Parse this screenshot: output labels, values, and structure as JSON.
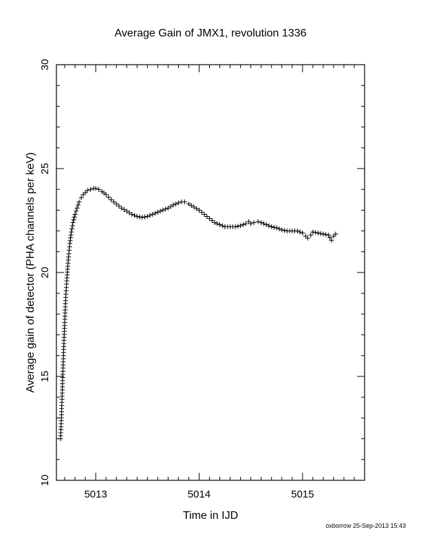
{
  "chart_data": {
    "type": "scatter",
    "title": "Average Gain of JMX1, revolution 1336",
    "xlabel": "Time in IJD",
    "ylabel": "Average gain of detector (PHA channels per keV)",
    "xlim": [
      5012.62,
      5015.6
    ],
    "ylim": [
      10,
      30
    ],
    "xticks": [
      5013,
      5014,
      5015
    ],
    "xtick_labels": [
      "5013",
      "5014",
      "5015"
    ],
    "yticks": [
      10,
      15,
      20,
      25,
      30
    ],
    "ytick_labels": [
      "10",
      "15",
      "20",
      "25",
      "30"
    ],
    "marker": "plus",
    "grid": false,
    "series": [
      {
        "x": [
          5012.66,
          5012.67,
          5012.68,
          5012.69,
          5012.7,
          5012.71,
          5012.72,
          5012.73,
          5012.74,
          5012.75,
          5012.76,
          5012.77,
          5012.78,
          5012.8,
          5012.82,
          5012.84,
          5012.86,
          5012.88,
          5012.9,
          5012.92,
          5012.95,
          5012.98,
          5013.0,
          5013.03,
          5013.06,
          5013.1,
          5013.15,
          5013.2,
          5013.25,
          5013.3,
          5013.35,
          5013.4,
          5013.45,
          5013.5,
          5013.55,
          5013.6,
          5013.65,
          5013.7,
          5013.75,
          5013.8,
          5013.83,
          5013.86,
          5013.9,
          5013.95,
          5014.0,
          5014.05,
          5014.1,
          5014.15,
          5014.2,
          5014.25,
          5014.3,
          5014.35,
          5014.4,
          5014.45,
          5014.48,
          5014.5,
          5014.53,
          5014.57,
          5014.6,
          5014.65,
          5014.7,
          5014.75,
          5014.8,
          5014.85,
          5014.9,
          5014.95,
          5015.0,
          5015.03,
          5015.05,
          5015.08,
          5015.1,
          5015.15,
          5015.2,
          5015.25,
          5015.28,
          5015.3,
          5015.32
        ],
        "y": [
          12.0,
          13.3,
          14.8,
          16.3,
          17.6,
          18.8,
          19.6,
          20.3,
          20.9,
          21.4,
          21.8,
          22.1,
          22.4,
          22.8,
          23.1,
          23.4,
          23.6,
          23.75,
          23.85,
          23.95,
          24.0,
          24.05,
          24.05,
          24.0,
          23.9,
          23.75,
          23.5,
          23.3,
          23.1,
          22.95,
          22.8,
          22.7,
          22.65,
          22.7,
          22.8,
          22.9,
          23.0,
          23.1,
          23.25,
          23.35,
          23.4,
          23.4,
          23.3,
          23.15,
          23.0,
          22.8,
          22.6,
          22.4,
          22.3,
          22.2,
          22.2,
          22.2,
          22.25,
          22.35,
          22.45,
          22.35,
          22.4,
          22.45,
          22.4,
          22.3,
          22.2,
          22.15,
          22.05,
          22.0,
          22.0,
          22.0,
          21.9,
          21.75,
          21.65,
          21.8,
          21.95,
          21.9,
          21.85,
          21.8,
          21.55,
          21.75,
          21.85
        ]
      }
    ]
  },
  "footer": {
    "credit": "oxborrow 25-Sep-2013 15:43"
  }
}
